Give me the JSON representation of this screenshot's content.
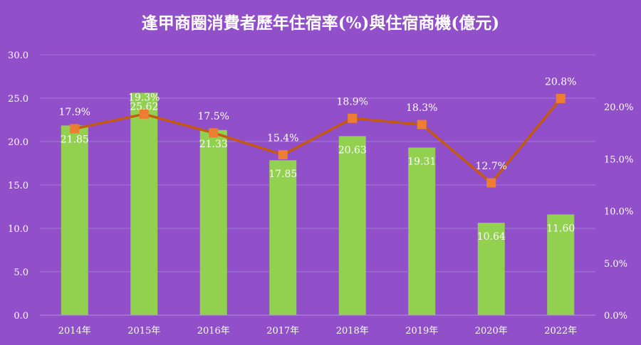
{
  "chart_data": {
    "type": "bar+line",
    "title": "逢甲商圈消費者歷年住宿率(%)與住宿商機(億元)",
    "categories": [
      "2014年",
      "2015年",
      "2016年",
      "2017年",
      "2018年",
      "2019年",
      "2020年",
      "2022年"
    ],
    "series": [
      {
        "kind": "bar",
        "axis": "left",
        "values": [
          21.85,
          25.62,
          21.33,
          17.85,
          20.63,
          19.31,
          10.64,
          11.6
        ],
        "labels": [
          "21.85",
          "25.62",
          "21.33",
          "17.85",
          "20.63",
          "19.31",
          "10.64",
          "11.60"
        ],
        "color": "#92d050"
      },
      {
        "kind": "line",
        "axis": "right",
        "values": [
          17.9,
          19.3,
          17.5,
          15.4,
          18.9,
          18.3,
          12.7,
          20.8
        ],
        "labels": [
          "17.9%",
          "19.3%",
          "17.5%",
          "15.4%",
          "18.9%",
          "18.3%",
          "12.7%",
          "20.8%"
        ],
        "color": "#c55a11",
        "marker_color": "#ed7d31"
      }
    ],
    "left_axis": {
      "ylim": [
        0,
        30
      ],
      "ticks": [
        "0.0",
        "5.0",
        "10.0",
        "15.0",
        "20.0",
        "25.0",
        "30.0"
      ]
    },
    "right_axis": {
      "ylim": [
        0,
        25
      ],
      "ticks": [
        "0.0%",
        "5.0%",
        "10.0%",
        "15.0%",
        "20.0%"
      ]
    },
    "grid": true,
    "colors": {
      "background": "#9150c9",
      "text": "#ffffff",
      "gridline": "#a777d8"
    }
  }
}
